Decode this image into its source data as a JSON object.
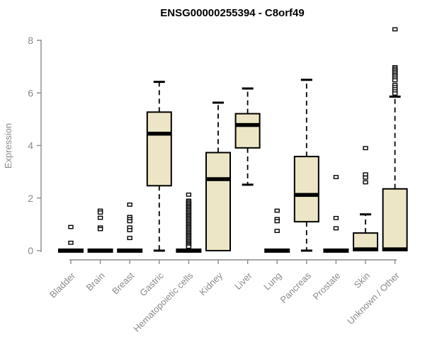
{
  "title": "ENSG00000255394 - C8orf49",
  "colors": {
    "background": "#ffffff",
    "box_fill": "#ede6c6",
    "box_stroke": "#000000",
    "median": "#000000",
    "whisker": "#000000",
    "outlier_fill": "#ffffff",
    "outlier_stroke": "#000000",
    "axis": "#8a8a8a",
    "tick_label": "#8a8a8a",
    "title_color": "#000000"
  },
  "chart_data": {
    "type": "boxplot",
    "title": "ENSG00000255394 - C8orf49",
    "xlabel": "",
    "ylabel": "Expression",
    "ylim": [
      0,
      8.5
    ],
    "yticks": [
      0,
      2,
      4,
      6,
      8
    ],
    "grid": false,
    "legend": false,
    "categories": [
      "Bladder",
      "Brain",
      "Breast",
      "Gastric",
      "Hematopoietic cells",
      "Kidney",
      "Liver",
      "Lung",
      "Pancreas",
      "Prostate",
      "Skin",
      "Unknown / Other"
    ],
    "boxes": [
      {
        "name": "Bladder",
        "q1": 0,
        "median": 0,
        "q3": 0,
        "whisker_low": null,
        "whisker_high": null,
        "outliers": [
          0.9,
          0.3
        ]
      },
      {
        "name": "Brain",
        "q1": 0,
        "median": 0,
        "q3": 0,
        "whisker_low": null,
        "whisker_high": null,
        "outliers": [
          1.52,
          1.45,
          1.25,
          0.88,
          0.82
        ]
      },
      {
        "name": "Breast",
        "q1": 0,
        "median": 0,
        "q3": 0,
        "whisker_low": null,
        "whisker_high": null,
        "outliers": [
          1.75,
          1.28,
          1.2,
          1.12,
          0.88,
          0.78,
          0.48
        ]
      },
      {
        "name": "Gastric",
        "q1": 2.47,
        "median": 4.45,
        "q3": 5.27,
        "whisker_low": 0,
        "whisker_high": 6.42,
        "outliers": []
      },
      {
        "name": "Hematopoietic cells",
        "q1": 0,
        "median": 0,
        "q3": 0,
        "whisker_low": null,
        "whisker_high": null,
        "outliers": [
          2.13,
          1.9,
          1.85,
          1.8,
          1.75,
          1.7,
          1.65,
          1.6,
          1.55,
          1.5,
          1.45,
          1.4,
          1.35,
          1.3,
          1.25,
          1.2,
          1.15,
          1.1,
          1.05,
          1.0,
          0.95,
          0.9,
          0.85,
          0.8,
          0.75,
          0.7,
          0.65,
          0.6,
          0.55,
          0.5,
          0.45,
          0.4,
          0.35,
          0.3,
          0.25,
          0.2,
          0.15
        ]
      },
      {
        "name": "Kidney",
        "q1": 0,
        "median": 2.72,
        "q3": 3.73,
        "whisker_low": null,
        "whisker_high": 5.63,
        "outliers": []
      },
      {
        "name": "Liver",
        "q1": 3.91,
        "median": 4.78,
        "q3": 5.21,
        "whisker_low": 2.51,
        "whisker_high": 6.17,
        "outliers": []
      },
      {
        "name": "Lung",
        "q1": 0,
        "median": 0,
        "q3": 0,
        "whisker_low": null,
        "whisker_high": null,
        "outliers": [
          1.52,
          1.2,
          1.12,
          0.75
        ]
      },
      {
        "name": "Pancreas",
        "q1": 1.1,
        "median": 2.12,
        "q3": 3.58,
        "whisker_low": 0,
        "whisker_high": 6.5,
        "outliers": []
      },
      {
        "name": "Prostate",
        "q1": 0,
        "median": 0,
        "q3": 0,
        "whisker_low": null,
        "whisker_high": null,
        "outliers": [
          2.8,
          1.24,
          0.85
        ]
      },
      {
        "name": "Skin",
        "q1": 0,
        "median": 0.05,
        "q3": 0.67,
        "whisker_low": null,
        "whisker_high": 1.38,
        "outliers": [
          3.9,
          2.9,
          2.78,
          2.6
        ]
      },
      {
        "name": "Unknown / Other",
        "q1": 0,
        "median": 0.05,
        "q3": 2.35,
        "whisker_low": null,
        "whisker_high": 5.86,
        "outliers": [
          8.42,
          6.98,
          6.92,
          6.86,
          6.8,
          6.74,
          6.68,
          6.62,
          6.55,
          6.48,
          6.3,
          6.22,
          6.14,
          6.06,
          5.98
        ]
      }
    ]
  }
}
